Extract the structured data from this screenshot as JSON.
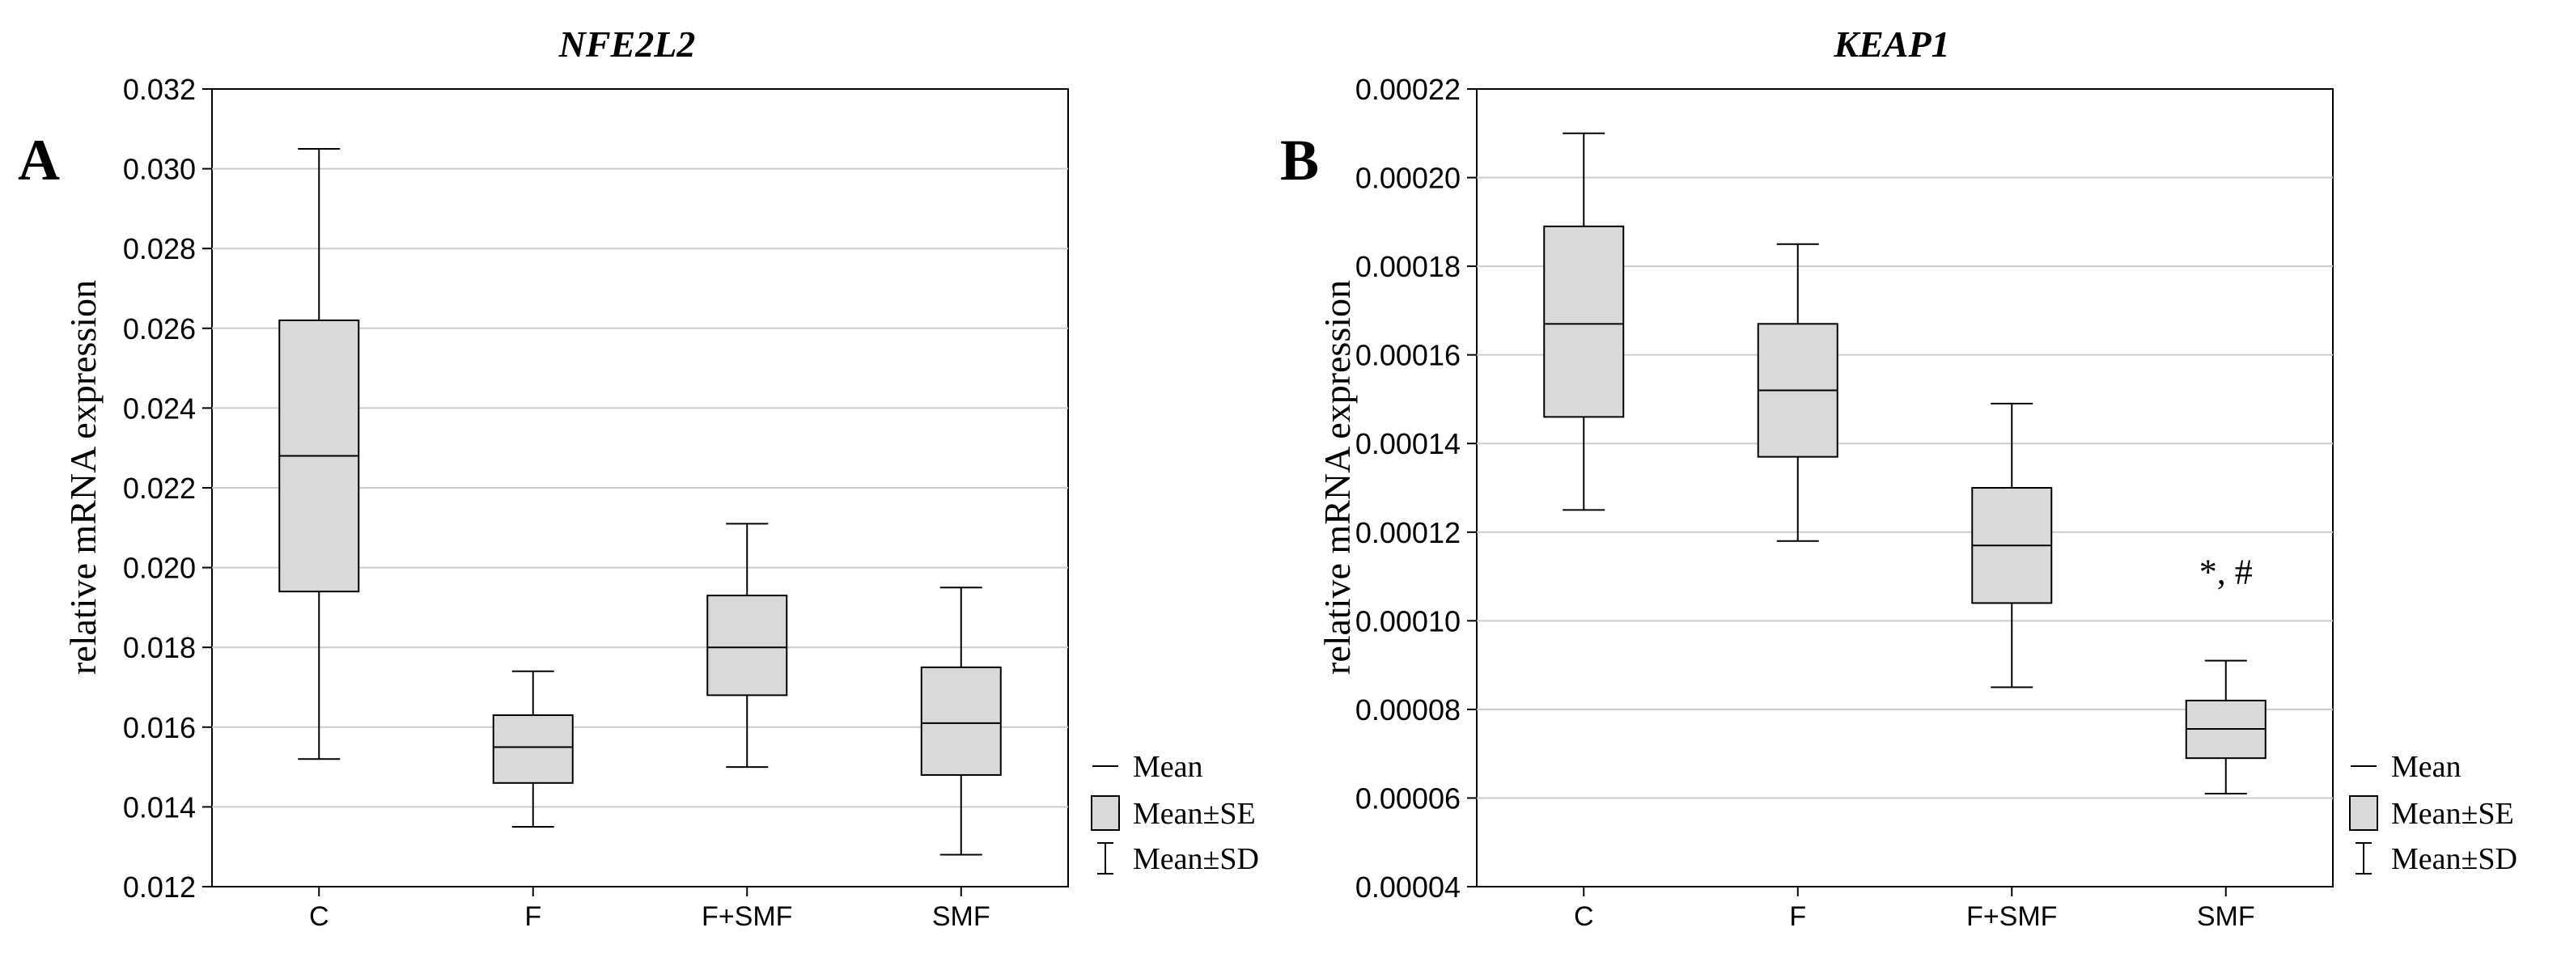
{
  "colors": {
    "box_fill": "#d9d9d9",
    "stroke": "#000000",
    "grid": "#cccccc",
    "background": "#ffffff"
  },
  "legend": {
    "mean": "Mean",
    "se": "Mean±SE",
    "sd": "Mean±SD"
  },
  "chart_data": [
    {
      "type": "boxplot",
      "panel": "A",
      "title": "NFE2L2",
      "xlabel": "",
      "ylabel": "relative mRNA expression",
      "ylim": [
        0.012,
        0.032
      ],
      "yticks": [
        "0.012",
        "0.014",
        "0.016",
        "0.018",
        "0.020",
        "0.022",
        "0.024",
        "0.026",
        "0.028",
        "0.030",
        "0.032"
      ],
      "grid": true,
      "legend_position": "bottom-right, outside",
      "categories": [
        "C",
        "F",
        "F+SMF",
        "SMF"
      ],
      "series": [
        {
          "category": "C",
          "mean": 0.0228,
          "se_low": 0.0194,
          "se_high": 0.0262,
          "sd_low": 0.0152,
          "sd_high": 0.0305,
          "annotation": ""
        },
        {
          "category": "F",
          "mean": 0.0155,
          "se_low": 0.0146,
          "se_high": 0.0163,
          "sd_low": 0.0135,
          "sd_high": 0.0174,
          "annotation": ""
        },
        {
          "category": "F+SMF",
          "mean": 0.018,
          "se_low": 0.0168,
          "se_high": 0.0193,
          "sd_low": 0.015,
          "sd_high": 0.0211,
          "annotation": ""
        },
        {
          "category": "SMF",
          "mean": 0.0161,
          "se_low": 0.0148,
          "se_high": 0.0175,
          "sd_low": 0.0128,
          "sd_high": 0.0195,
          "annotation": ""
        }
      ]
    },
    {
      "type": "boxplot",
      "panel": "B",
      "title": "KEAP1",
      "xlabel": "",
      "ylabel": "relative mRNA expression",
      "ylim": [
        4e-05,
        0.00022
      ],
      "yticks": [
        "0.00004",
        "0.00006",
        "0.00008",
        "0.00010",
        "0.00012",
        "0.00014",
        "0.00016",
        "0.00018",
        "0.00020",
        "0.00022"
      ],
      "grid": true,
      "legend_position": "bottom-right, outside",
      "categories": [
        "C",
        "F",
        "F+SMF",
        "SMF"
      ],
      "series": [
        {
          "category": "C",
          "mean": 0.000167,
          "se_low": 0.000146,
          "se_high": 0.000189,
          "sd_low": 0.000125,
          "sd_high": 0.00021,
          "annotation": ""
        },
        {
          "category": "F",
          "mean": 0.000152,
          "se_low": 0.000137,
          "se_high": 0.000167,
          "sd_low": 0.000118,
          "sd_high": 0.000185,
          "annotation": ""
        },
        {
          "category": "F+SMF",
          "mean": 0.000117,
          "se_low": 0.000104,
          "se_high": 0.00013,
          "sd_low": 8.5e-05,
          "sd_high": 0.000149,
          "annotation": ""
        },
        {
          "category": "SMF",
          "mean": 7.56e-05,
          "se_low": 6.9e-05,
          "se_high": 8.2e-05,
          "sd_low": 6.1e-05,
          "sd_high": 9.1e-05,
          "annotation": "*, #"
        }
      ]
    }
  ]
}
